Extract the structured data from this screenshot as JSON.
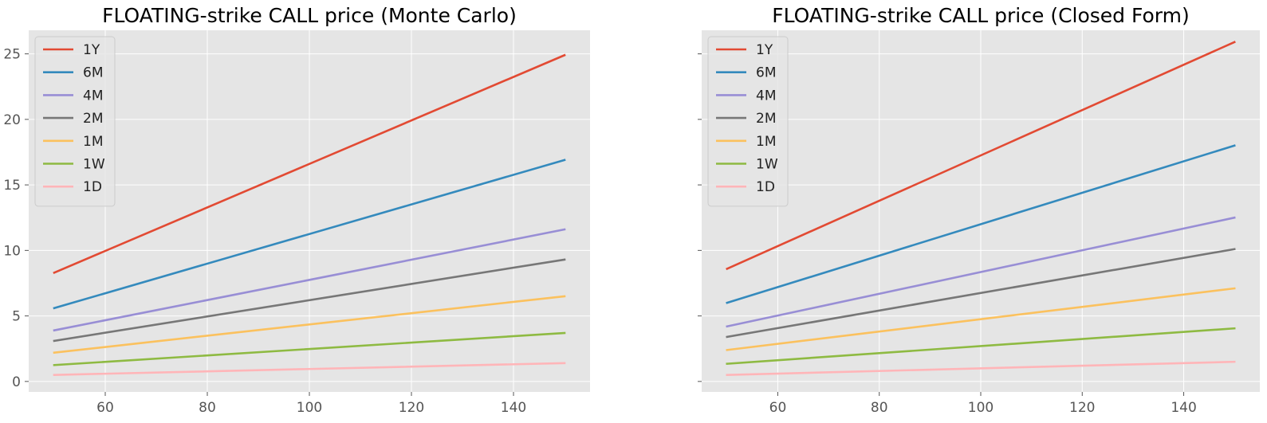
{
  "chart_data": [
    {
      "type": "line",
      "title": "FLOATING-strike CALL price (Monte Carlo)",
      "xlabel": "",
      "ylabel": "",
      "xlim": [
        45,
        155
      ],
      "ylim": [
        -0.8,
        26.8
      ],
      "xticks": [
        60,
        80,
        100,
        120,
        140
      ],
      "yticks": [
        0,
        5,
        10,
        15,
        20,
        25
      ],
      "grid": true,
      "legend_position": "top-left",
      "x": [
        50,
        150
      ],
      "series": [
        {
          "name": "1Y",
          "color": "#E24A33",
          "values": [
            8.3,
            24.9
          ]
        },
        {
          "name": "6M",
          "color": "#348ABD",
          "values": [
            5.6,
            16.9
          ]
        },
        {
          "name": "4M",
          "color": "#988ED5",
          "values": [
            3.9,
            11.6
          ]
        },
        {
          "name": "2M",
          "color": "#777777",
          "values": [
            3.1,
            9.3
          ]
        },
        {
          "name": "1M",
          "color": "#FBC15E",
          "values": [
            2.2,
            6.5
          ]
        },
        {
          "name": "1W",
          "color": "#8EBA42",
          "values": [
            1.25,
            3.7
          ]
        },
        {
          "name": "1D",
          "color": "#FFB5B8",
          "values": [
            0.5,
            1.4
          ]
        }
      ]
    },
    {
      "type": "line",
      "title": "FLOATING-strike CALL price (Closed Form)",
      "xlabel": "",
      "ylabel": "",
      "xlim": [
        45,
        155
      ],
      "ylim": [
        -0.8,
        26.8
      ],
      "xticks": [
        60,
        80,
        100,
        120,
        140
      ],
      "yticks": [
        0,
        5,
        10,
        15,
        20,
        25
      ],
      "grid": true,
      "legend_position": "top-left",
      "x": [
        50,
        150
      ],
      "series": [
        {
          "name": "1Y",
          "color": "#E24A33",
          "values": [
            8.6,
            25.9
          ]
        },
        {
          "name": "6M",
          "color": "#348ABD",
          "values": [
            6.0,
            18.0
          ]
        },
        {
          "name": "4M",
          "color": "#988ED5",
          "values": [
            4.2,
            12.5
          ]
        },
        {
          "name": "2M",
          "color": "#777777",
          "values": [
            3.4,
            10.1
          ]
        },
        {
          "name": "1M",
          "color": "#FBC15E",
          "values": [
            2.4,
            7.1
          ]
        },
        {
          "name": "1W",
          "color": "#8EBA42",
          "values": [
            1.35,
            4.05
          ]
        },
        {
          "name": "1D",
          "color": "#FFB5B8",
          "values": [
            0.5,
            1.5
          ]
        }
      ]
    }
  ]
}
